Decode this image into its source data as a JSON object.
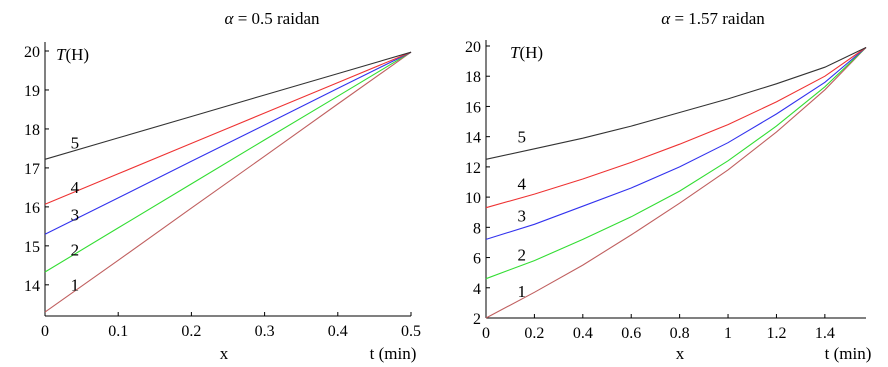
{
  "chart_data": [
    {
      "type": "line",
      "title_prefix": "α",
      "title_rest": " = 0.5 raidan",
      "ylabel": "T(H)",
      "ylabel_italic": "T",
      "ylabel_rest": "(H)",
      "xlabel": "x",
      "xlabel_right": "t (min)",
      "xlim": [
        0,
        0.5
      ],
      "ylim": [
        13.2,
        20
      ],
      "xticks": [
        "0",
        "0.1",
        "0.2",
        "0.3",
        "0.4",
        "0.5"
      ],
      "xtick_values": [
        0,
        0.1,
        0.2,
        0.3,
        0.4,
        0.5
      ],
      "yticks": [
        "14",
        "15",
        "16",
        "17",
        "18",
        "19",
        "20"
      ],
      "ytick_values": [
        14,
        15,
        16,
        17,
        18,
        19,
        20
      ],
      "series": [
        {
          "name": "1",
          "color": "#c06060",
          "x": [
            0,
            0.1,
            0.2,
            0.3,
            0.4,
            0.5
          ],
          "y": [
            13.3,
            14.63,
            15.97,
            17.3,
            18.64,
            19.97
          ],
          "label_at": [
            0.035,
            13.85
          ]
        },
        {
          "name": "2",
          "color": "#33dd33",
          "x": [
            0,
            0.1,
            0.2,
            0.3,
            0.4,
            0.5
          ],
          "y": [
            14.33,
            15.46,
            16.59,
            17.72,
            18.84,
            19.97
          ],
          "label_at": [
            0.035,
            14.75
          ]
        },
        {
          "name": "3",
          "color": "#3333ee",
          "x": [
            0,
            0.1,
            0.2,
            0.3,
            0.4,
            0.5
          ],
          "y": [
            15.3,
            16.23,
            17.17,
            18.1,
            19.04,
            19.97
          ],
          "label_at": [
            0.035,
            15.65
          ]
        },
        {
          "name": "4",
          "color": "#ee3333",
          "x": [
            0,
            0.1,
            0.2,
            0.3,
            0.4,
            0.5
          ],
          "y": [
            16.07,
            16.85,
            17.63,
            18.41,
            19.19,
            19.97
          ],
          "label_at": [
            0.035,
            16.35
          ]
        },
        {
          "name": "5",
          "color": "#333333",
          "x": [
            0,
            0.1,
            0.2,
            0.3,
            0.4,
            0.5
          ],
          "y": [
            17.22,
            17.77,
            18.32,
            18.87,
            19.42,
            19.97
          ],
          "label_at": [
            0.035,
            17.5
          ]
        }
      ]
    },
    {
      "type": "line",
      "title_prefix": "α",
      "title_rest": " = 1.57 raidan",
      "ylabel": "T(H)",
      "ylabel_italic": "T",
      "ylabel_rest": "(H)",
      "xlabel": "x",
      "xlabel_right": "t (min)",
      "xlim": [
        0,
        1.57
      ],
      "ylim": [
        2,
        20
      ],
      "xticks": [
        "0",
        "0.2",
        "0.4",
        "0.6",
        "0.8",
        "1",
        "1.2",
        "1.4"
      ],
      "xtick_values": [
        0,
        0.2,
        0.4,
        0.6,
        0.8,
        1,
        1.2,
        1.4
      ],
      "yticks": [
        "2",
        "4",
        "6",
        "8",
        "10",
        "12",
        "14",
        "16",
        "18",
        "20"
      ],
      "ytick_values": [
        2,
        4,
        6,
        8,
        10,
        12,
        14,
        16,
        18,
        20
      ],
      "series": [
        {
          "name": "1",
          "color": "#c06060",
          "x": [
            0,
            0.2,
            0.4,
            0.6,
            0.8,
            1.0,
            1.2,
            1.4,
            1.57
          ],
          "y": [
            2.0,
            3.7,
            5.5,
            7.5,
            9.6,
            11.8,
            14.3,
            17.1,
            19.9
          ],
          "label_at": [
            0.13,
            3.4
          ]
        },
        {
          "name": "2",
          "color": "#33dd33",
          "x": [
            0,
            0.2,
            0.4,
            0.6,
            0.8,
            1.0,
            1.2,
            1.4,
            1.57
          ],
          "y": [
            4.6,
            5.8,
            7.2,
            8.7,
            10.4,
            12.4,
            14.7,
            17.3,
            19.9
          ],
          "label_at": [
            0.13,
            5.8
          ]
        },
        {
          "name": "3",
          "color": "#3333ee",
          "x": [
            0,
            0.2,
            0.4,
            0.6,
            0.8,
            1.0,
            1.2,
            1.4,
            1.57
          ],
          "y": [
            7.2,
            8.2,
            9.4,
            10.6,
            12.0,
            13.6,
            15.5,
            17.6,
            19.9
          ],
          "label_at": [
            0.13,
            8.4
          ]
        },
        {
          "name": "4",
          "color": "#ee3333",
          "x": [
            0,
            0.2,
            0.4,
            0.6,
            0.8,
            1.0,
            1.2,
            1.4,
            1.57
          ],
          "y": [
            9.3,
            10.2,
            11.2,
            12.3,
            13.5,
            14.8,
            16.3,
            18.0,
            19.9
          ],
          "label_at": [
            0.13,
            10.5
          ]
        },
        {
          "name": "5",
          "color": "#333333",
          "x": [
            0,
            0.2,
            0.4,
            0.6,
            0.8,
            1.0,
            1.2,
            1.4,
            1.57
          ],
          "y": [
            12.5,
            13.2,
            13.9,
            14.7,
            15.6,
            16.5,
            17.5,
            18.6,
            19.9
          ],
          "label_at": [
            0.13,
            13.6
          ]
        }
      ]
    }
  ]
}
